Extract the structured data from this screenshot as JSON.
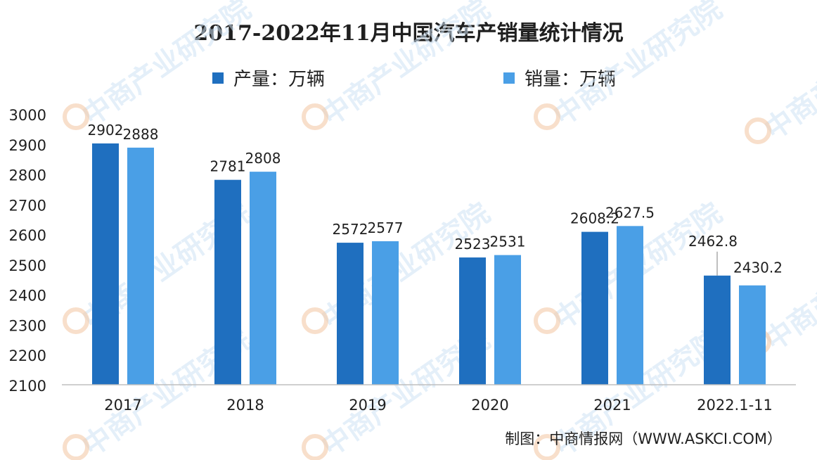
{
  "chart_data": {
    "type": "bar",
    "title": "2017-2022年11月中国汽车产销量统计情况",
    "categories": [
      "2017",
      "2018",
      "2019",
      "2020",
      "2021",
      "2022.1-11"
    ],
    "series": [
      {
        "name": "产量：万辆",
        "color": "#1f6fbf",
        "values": [
          2902,
          2781,
          2572,
          2523,
          2608.2,
          2462.8
        ],
        "labels": [
          "2902",
          "2781",
          "2572",
          "2523",
          "2608.2",
          "2462.8"
        ]
      },
      {
        "name": "销量：万辆",
        "color": "#4a9fe6",
        "values": [
          2888,
          2808,
          2577,
          2531,
          2627.5,
          2430.2
        ],
        "labels": [
          "2888",
          "2808",
          "2577",
          "2531",
          "2627.5",
          "2430.2"
        ]
      }
    ],
    "ylim": [
      2100,
      3000
    ],
    "yticks": [
      2100,
      2200,
      2300,
      2400,
      2500,
      2600,
      2700,
      2800,
      2900,
      3000
    ],
    "grid": false,
    "legend_position": "top"
  },
  "source": "制图：中商情报网（WWW.ASKCI.COM）",
  "watermark": "中商产业研究院"
}
